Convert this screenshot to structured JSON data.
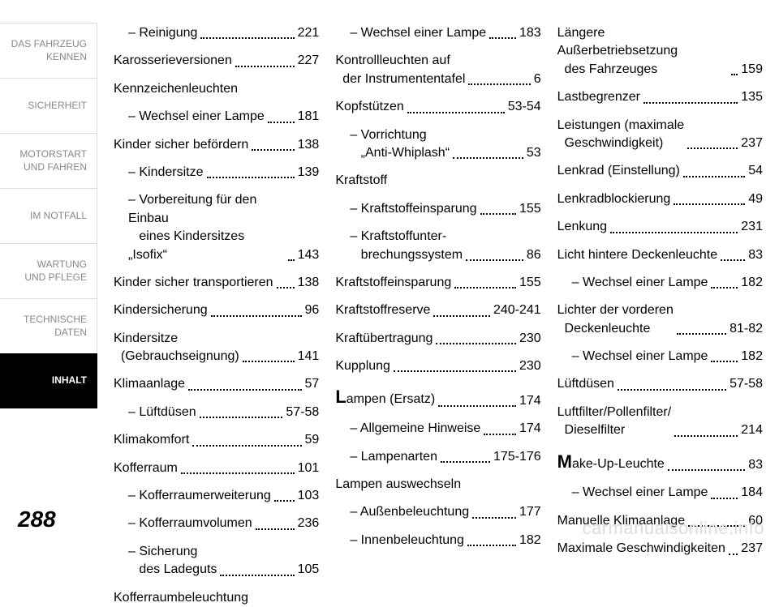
{
  "sidebar": {
    "items": [
      {
        "label": "DAS FAHRZEUG\nKENNEN",
        "active": false
      },
      {
        "label": "SICHERHEIT",
        "active": false
      },
      {
        "label": "MOTORSTART\nUND FAHREN",
        "active": false
      },
      {
        "label": "IM NOTFALL",
        "active": false
      },
      {
        "label": "WARTUNG\nUND PFLEGE",
        "active": false
      },
      {
        "label": "TECHNISCHE\nDATEN",
        "active": false
      },
      {
        "label": "INHALT",
        "active": true
      }
    ]
  },
  "pageNumber": "288",
  "watermark": "carmanualsonline.info",
  "columns": [
    [
      {
        "type": "entry",
        "indent": 1,
        "label": "– Reinigung",
        "page": "221"
      },
      {
        "type": "entry",
        "indent": 0,
        "label": "Karosserieversionen",
        "page": "227"
      },
      {
        "type": "heading",
        "indent": 0,
        "label": "Kennzeichenleuchten"
      },
      {
        "type": "entry",
        "indent": 1,
        "label": "– Wechsel einer Lampe",
        "page": "181"
      },
      {
        "type": "entry",
        "indent": 0,
        "label": "Kinder sicher befördern",
        "page": "138"
      },
      {
        "type": "entry",
        "indent": 1,
        "label": "– Kindersitze",
        "page": "139"
      },
      {
        "type": "entry",
        "indent": 1,
        "label": "– Vorbereitung für den Einbau\n   eines Kindersitzes „Isofix“",
        "page": "143"
      },
      {
        "type": "entry",
        "indent": 0,
        "label": "Kinder sicher transportieren",
        "page": "138"
      },
      {
        "type": "entry",
        "indent": 0,
        "label": "Kindersicherung",
        "page": "96"
      },
      {
        "type": "entry",
        "indent": 0,
        "label": "Kindersitze\n  (Gebrauchseignung)",
        "page": "141"
      },
      {
        "type": "entry",
        "indent": 0,
        "label": "Klimaanlage",
        "page": "57"
      },
      {
        "type": "entry",
        "indent": 1,
        "label": "– Lüftdüsen",
        "page": "57-58"
      },
      {
        "type": "entry",
        "indent": 0,
        "label": "Klimakomfort",
        "page": "59"
      },
      {
        "type": "entry",
        "indent": 0,
        "label": "Kofferraum",
        "page": "101"
      },
      {
        "type": "entry",
        "indent": 1,
        "label": "– Kofferraumerweiterung",
        "page": "103"
      },
      {
        "type": "entry",
        "indent": 1,
        "label": "– Kofferraumvolumen",
        "page": "236"
      },
      {
        "type": "entry",
        "indent": 1,
        "label": "– Sicherung\n   des Ladeguts",
        "page": "105"
      },
      {
        "type": "heading",
        "indent": 0,
        "label": "Kofferraumbeleuchtung"
      }
    ],
    [
      {
        "type": "entry",
        "indent": 1,
        "label": "– Wechsel einer Lampe",
        "page": "183"
      },
      {
        "type": "entry",
        "indent": 0,
        "label": "Kontrollleuchten auf\n  der Instrumententafel",
        "page": "6"
      },
      {
        "type": "entry",
        "indent": 0,
        "label": "Kopfstützen",
        "page": "53-54"
      },
      {
        "type": "entry",
        "indent": 1,
        "label": "– Vorrichtung\n   „Anti-Whiplash“",
        "page": "53"
      },
      {
        "type": "heading",
        "indent": 0,
        "label": "Kraftstoff"
      },
      {
        "type": "entry",
        "indent": 1,
        "label": "– Kraftstoffeinsparung",
        "page": "155"
      },
      {
        "type": "entry",
        "indent": 1,
        "label": "– Kraftstoffunter-\n   brechungssystem",
        "page": "86"
      },
      {
        "type": "entry",
        "indent": 0,
        "label": "Kraftstoffeinsparung",
        "page": "155"
      },
      {
        "type": "entry",
        "indent": 0,
        "label": "Kraftstoffreserve",
        "page": "240-241"
      },
      {
        "type": "entry",
        "indent": 0,
        "label": "Kraftübertragung",
        "page": "230"
      },
      {
        "type": "entry",
        "indent": 0,
        "label": "Kupplung",
        "page": "230"
      },
      {
        "type": "entry",
        "indent": 0,
        "dropcap": "L",
        "label": "ampen (Ersatz)",
        "page": "174"
      },
      {
        "type": "entry",
        "indent": 1,
        "label": "– Allgemeine Hinweise",
        "page": "174"
      },
      {
        "type": "entry",
        "indent": 1,
        "label": "– Lampenarten",
        "page": "175-176"
      },
      {
        "type": "heading",
        "indent": 0,
        "label": "Lampen auswechseln"
      },
      {
        "type": "entry",
        "indent": 1,
        "label": "– Außenbeleuchtung",
        "page": "177"
      },
      {
        "type": "entry",
        "indent": 1,
        "label": "– Innenbeleuchtung",
        "page": "182"
      }
    ],
    [
      {
        "type": "entry",
        "indent": 0,
        "label": "Längere Außerbetriebsetzung\n  des Fahrzeuges",
        "page": "159"
      },
      {
        "type": "entry",
        "indent": 0,
        "label": "Lastbegrenzer",
        "page": "135"
      },
      {
        "type": "entry",
        "indent": 0,
        "label": "Leistungen (maximale\n  Geschwindigkeit)",
        "page": "237"
      },
      {
        "type": "entry",
        "indent": 0,
        "label": "Lenkrad (Einstellung)",
        "page": "54"
      },
      {
        "type": "entry",
        "indent": 0,
        "label": "Lenkradblockierung",
        "page": "49"
      },
      {
        "type": "entry",
        "indent": 0,
        "label": "Lenkung",
        "page": "231"
      },
      {
        "type": "entry",
        "indent": 0,
        "label": "Licht hintere Deckenleuchte",
        "page": "83"
      },
      {
        "type": "entry",
        "indent": 1,
        "label": "– Wechsel einer Lampe",
        "page": "182"
      },
      {
        "type": "entry",
        "indent": 0,
        "label": "Lichter der vorderen\n  Deckenleuchte",
        "page": "81-82"
      },
      {
        "type": "entry",
        "indent": 1,
        "label": "– Wechsel einer Lampe",
        "page": "182"
      },
      {
        "type": "entry",
        "indent": 0,
        "label": "Lüftdüsen",
        "page": "57-58"
      },
      {
        "type": "entry",
        "indent": 0,
        "label": "Luftfilter/Pollenfilter/\n  Dieselfilter",
        "page": "214"
      },
      {
        "type": "entry",
        "indent": 0,
        "dropcap": "M",
        "label": "ake-Up-Leuchte",
        "page": "83"
      },
      {
        "type": "entry",
        "indent": 1,
        "label": "– Wechsel einer Lampe",
        "page": "184"
      },
      {
        "type": "entry",
        "indent": 0,
        "label": "Manuelle Klimaanlage",
        "page": "60"
      },
      {
        "type": "entry",
        "indent": 0,
        "label": "Maximale Geschwindigkeiten",
        "page": "237"
      }
    ]
  ]
}
